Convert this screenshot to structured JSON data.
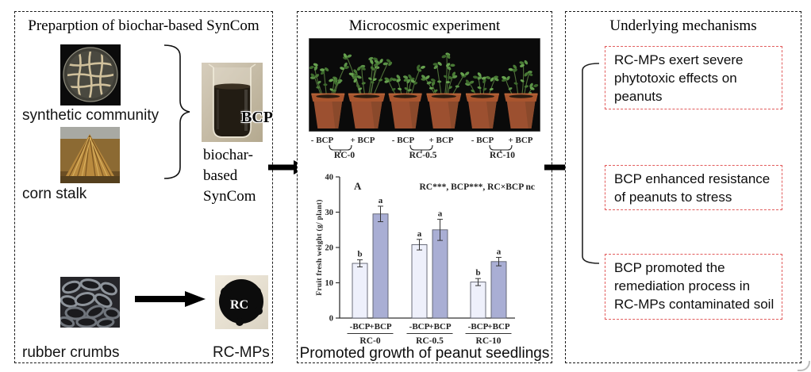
{
  "left_panel": {
    "title": "Preparption of biochar-based SynCom",
    "petri_label": "synthetic community",
    "corn_label": "corn stalk",
    "beaker_label": "BCP",
    "beaker_caption_lines": [
      "biochar-",
      "based",
      "SynCom"
    ],
    "rubber_label": "rubber crumbs",
    "rc_circle_label": "RC",
    "rc_caption": "RC-MPs"
  },
  "middle_panel": {
    "title": "Microcosmic experiment",
    "caption": "Promoted growth of peanut seedlings",
    "treatment_groups": [
      {
        "minus": "- BCP",
        "plus": "+ BCP",
        "name": "RC-0"
      },
      {
        "minus": "- BCP",
        "plus": "+ BCP",
        "name": "RC-0.5"
      },
      {
        "minus": "- BCP",
        "plus": "+ BCP",
        "name": "RC-10"
      }
    ]
  },
  "right_panel": {
    "title": "Underlying mechanisms",
    "mechanism_boxes": [
      "RC-MPs exert severe phytotoxic effects on peanuts",
      "BCP enhanced resistance of peanuts to stress",
      "BCP promoted the remediation process in RC-MPs contaminated soil"
    ]
  },
  "chart_data": {
    "type": "bar",
    "panel_label": "A",
    "annotation": "RC***, BCP***, RC×BCP nc",
    "categories": [
      "RC-0",
      "RC-0.5",
      "RC-10"
    ],
    "series": [
      {
        "name": "-BCP",
        "color": "#eef0fb",
        "values": [
          15.5,
          20.8,
          10.2
        ],
        "errors": [
          1.0,
          1.5,
          1.0
        ],
        "sig_letters": [
          "b",
          "a",
          "b"
        ]
      },
      {
        "name": "+BCP",
        "color": "#a9aed4",
        "values": [
          29.5,
          25.0,
          16.0
        ],
        "errors": [
          2.2,
          3.0,
          1.2
        ],
        "sig_letters": [
          "a",
          "a",
          "a"
        ]
      }
    ],
    "ylabel": "Fruit fresh weight (g/ plant)",
    "ylim": [
      0,
      40
    ],
    "yticks": [
      0,
      10,
      20,
      30,
      40
    ],
    "grid": false,
    "legend": "none"
  },
  "colors": {
    "panel_border": "#1a1a1a",
    "mechanism_box_border": "#e25c5c",
    "bar_minus_bcp": "#eef0fb",
    "bar_plus_bcp": "#a9aed4",
    "arrow": "#000000"
  }
}
